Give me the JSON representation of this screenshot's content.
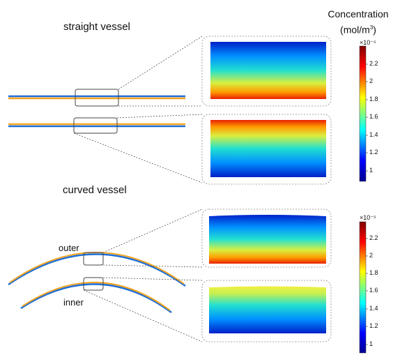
{
  "labels": {
    "straight_title": "straight vessel",
    "curved_title": "curved vessel",
    "outer": "outer",
    "inner": "inner",
    "conc_line1": "Concentration",
    "conc_line2_prefix": "(mol/m",
    "conc_line2_sup": "3",
    "conc_line2_suffix": ")"
  },
  "colorbars": [
    {
      "exponent_label": "×10⁻⁵",
      "ticks": [
        "2.2",
        "2",
        "1.8",
        "1.6",
        "1.4",
        "1.2",
        "1"
      ]
    },
    {
      "exponent_label": "×10⁻⁵",
      "ticks": [
        "2.2",
        "2",
        "1.8",
        "1.6",
        "1.4",
        "1.2",
        "1"
      ]
    }
  ],
  "colors": {
    "jet_low": "#00008f",
    "jet_mid": "#00ffff",
    "jet_high": "#ff0000",
    "vessel_blue": "#1f6fd6",
    "vessel_orange": "#f5a623",
    "guide_line": "#555555"
  }
}
